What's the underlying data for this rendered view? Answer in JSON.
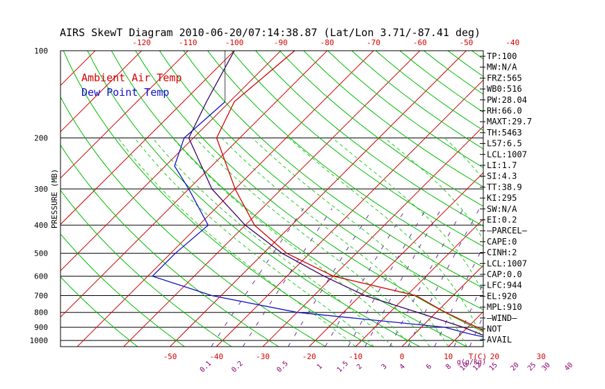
{
  "colors": {
    "temp": "#d40000",
    "dewpoint": "#1010c8",
    "parcel": "#3a0060",
    "isotherm": "#cc0000",
    "dry_adiabat": "#00bb00",
    "moist_adiabat": "#22cc22",
    "mixing_ratio": "#6a2aa0",
    "frame": "#000000",
    "mixing_label": "#8a0070"
  },
  "chart_data": {
    "type": "line",
    "title": "AIRS SkewT Diagram 2010-06-20/07:14:38.87 (Lat/Lon 3.71/-87.41 deg)",
    "ylabel": "PRESSURE (MB)",
    "x_unit_label": "T(C)",
    "mixing_unit_label": "g(g/kg)",
    "y_scale": "log",
    "ylim": [
      1050,
      100
    ],
    "top_temp_ticks": [
      "-120",
      "-110",
      "-100",
      "-90",
      "-80",
      "-70",
      "-60",
      "-50",
      "-40"
    ],
    "bottom_temp_ticks": [
      "-50",
      "-40",
      "-30",
      "-20",
      "-10",
      "0",
      "10",
      "20",
      "30"
    ],
    "pressure_ticks": [
      "100",
      "200",
      "300",
      "400",
      "500",
      "600",
      "700",
      "800",
      "900",
      "1000"
    ],
    "mixing_ratio_labels": [
      "0.1",
      "0.2",
      "0.5",
      "1",
      "1.5",
      "2",
      "3",
      "4",
      "6",
      "8",
      "10",
      "12",
      "15",
      "20",
      "25",
      "30",
      "40"
    ],
    "legend": [
      "Ambient Air Temp",
      "Dew Point Temp"
    ],
    "series": [
      {
        "name": "Ambient Air Temp",
        "points": [
          [
            -87,
            100
          ],
          [
            -89,
            150
          ],
          [
            -85,
            200
          ],
          [
            -70,
            300
          ],
          [
            -58,
            400
          ],
          [
            -45,
            500
          ],
          [
            -30,
            600
          ],
          [
            -8,
            700
          ],
          [
            2,
            800
          ],
          [
            12,
            900
          ],
          [
            20,
            1000
          ]
        ]
      },
      {
        "name": "Dew Point Temp",
        "points": [
          [
            -91,
            150
          ],
          [
            -92,
            200
          ],
          [
            -88,
            250
          ],
          [
            -80,
            300
          ],
          [
            -68,
            400
          ],
          [
            -69,
            500
          ],
          [
            -69,
            600
          ],
          [
            -52,
            700
          ],
          [
            -30,
            800
          ],
          [
            5,
            900
          ],
          [
            12,
            950
          ],
          [
            20,
            1000
          ]
        ]
      },
      {
        "points": [
          [
            -100,
            100
          ],
          [
            -95,
            150
          ],
          [
            -91,
            200
          ],
          [
            -75,
            300
          ],
          [
            -60,
            400
          ],
          [
            -46,
            500
          ],
          [
            -32,
            600
          ],
          [
            -19,
            700
          ],
          [
            -4,
            800
          ],
          [
            9,
            900
          ],
          [
            19,
            1000
          ]
        ]
      }
    ],
    "right_panel": [
      "TP:100",
      "MW:N/A",
      "FRZ:565",
      "WB0:516",
      "PW:28.04",
      "RH:66.0",
      "MAXT:29.7",
      "TH:5463",
      "L57:6.5",
      "LCL:1007",
      "LI:1.7",
      "SI:4.3",
      "TT:38.9",
      "KI:295",
      "SW:N/A",
      "EI:0.2",
      "—PARCEL—",
      "CAPE:0",
      "CINH:2",
      "LCL:1007",
      "CAP:0.0",
      "LFC:944",
      "EL:920",
      "MPL:910",
      "—WIND—",
      "NOT",
      "AVAIL"
    ]
  }
}
